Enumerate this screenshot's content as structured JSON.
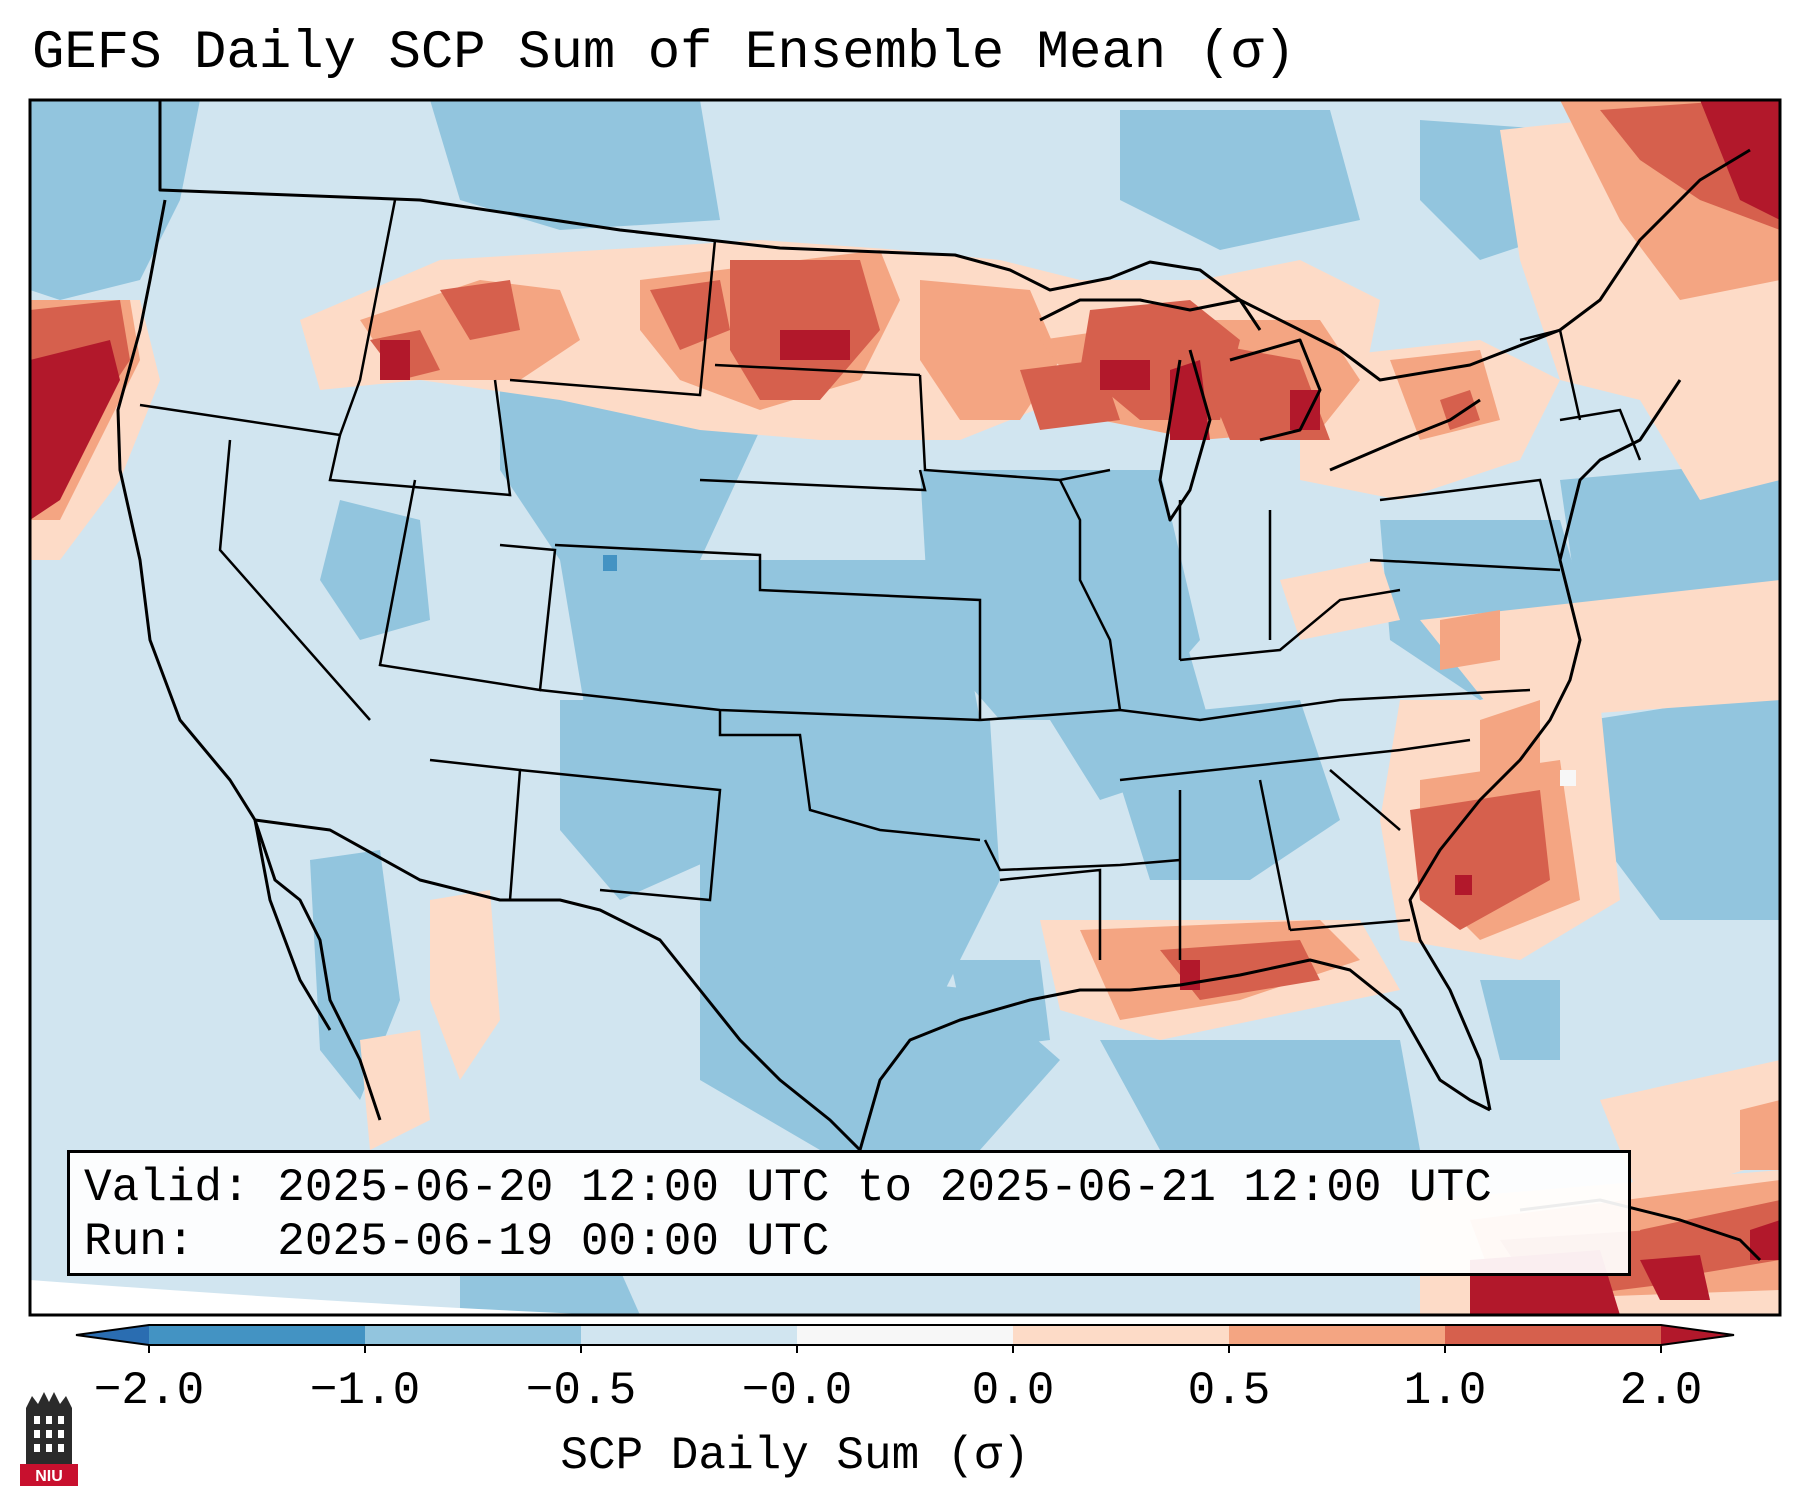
{
  "title": "GEFS Daily SCP Sum of Ensemble Mean (σ)",
  "info": {
    "valid_label": "Valid:",
    "valid_value": "2025-06-20 12:00 UTC to 2025-06-21 12:00 UTC",
    "run_label": "Run:",
    "run_value": "2025-06-19 00:00 UTC"
  },
  "colorbar": {
    "label": "SCP Daily Sum (σ)",
    "ticks": [
      "−2.0",
      "−1.0",
      "−0.5",
      "−0.0",
      "0.0",
      "0.5",
      "1.0",
      "2.0"
    ],
    "bins": [
      -2.0,
      -1.0,
      -0.5,
      -0.0,
      0.0,
      0.5,
      1.0,
      2.0
    ],
    "colors": {
      "under": "#2a6db1",
      "bin_neg2_neg1": "#4393c3",
      "bin_neg1_neg05": "#92c5de",
      "bin_neg05_0": "#d1e5f0",
      "bin_zero": "#f7f7f7",
      "bin_0_05": "#fddbc7",
      "bin_05_1": "#f4a582",
      "bin_1_2": "#d6604d",
      "over": "#b2182b"
    }
  },
  "logo": {
    "name": "niu-logo-icon",
    "text": "NIU"
  }
}
